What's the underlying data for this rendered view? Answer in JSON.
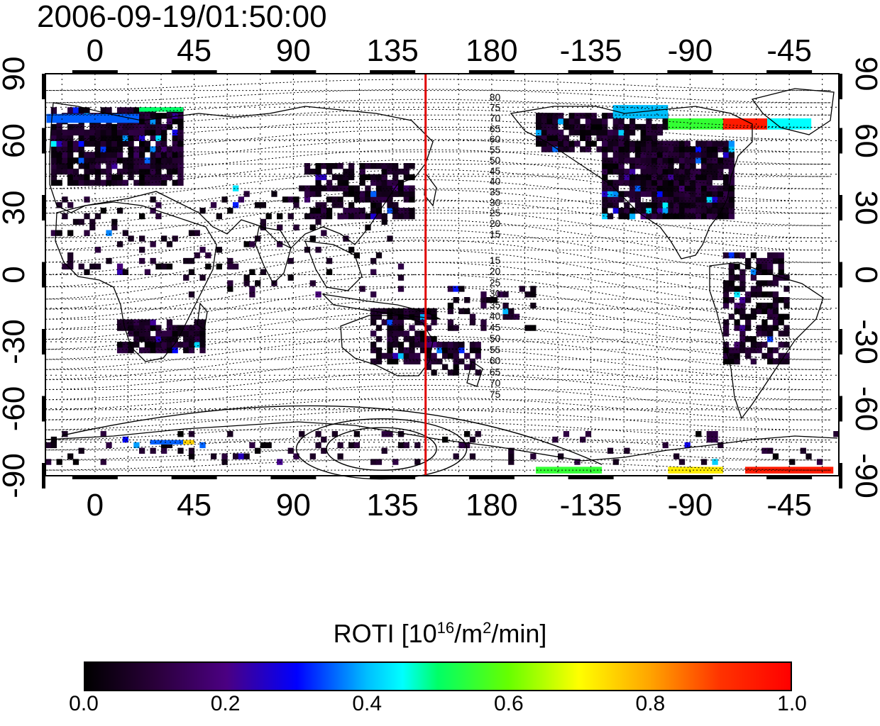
{
  "title": "2006-09-19/01:50:00",
  "map": {
    "top_labels": [
      "0",
      "45",
      "90",
      "135",
      "180",
      "-135",
      "-90",
      "-45"
    ],
    "bottom_labels": [
      "0",
      "45",
      "90",
      "135",
      "180",
      "-135",
      "-90",
      "-45"
    ],
    "left_labels": [
      "90",
      "60",
      "30",
      "0",
      "-30",
      "-60",
      "-90"
    ],
    "right_labels": [
      "90",
      "60",
      "30",
      "0",
      "-30",
      "-60",
      "-90"
    ],
    "meridian_marker_lon": 150,
    "marker_color": "#e00000",
    "contour_labels_north": [
      "80",
      "75",
      "70",
      "65",
      "60",
      "55",
      "50",
      "45",
      "40",
      "35",
      "30",
      "25",
      "20",
      "15"
    ],
    "contour_labels_south": [
      "15",
      "20",
      "25",
      "30",
      "35",
      "40",
      "45",
      "50",
      "55",
      "60",
      "65",
      "70",
      "75"
    ]
  },
  "colorbar": {
    "title_prefix": "ROTI  [10",
    "title_sup1": "16",
    "title_mid": "/m",
    "title_sup2": "2",
    "title_suffix": "/min]",
    "ticks": [
      "0.0",
      "0.2",
      "0.4",
      "0.6",
      "0.8",
      "1.0"
    ],
    "range": [
      0.0,
      1.0
    ]
  }
}
